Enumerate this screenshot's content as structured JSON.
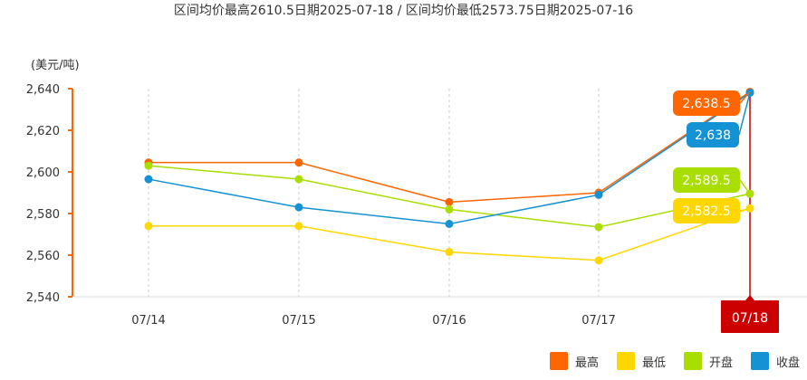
{
  "header": {
    "title": "区间均价最高2610.5日期2025-07-18 / 区间均价最低2573.75日期2025-07-16"
  },
  "chart_data": {
    "type": "line",
    "unit_label": "(美元/吨)",
    "categories": [
      "07/14",
      "07/15",
      "07/16",
      "07/17",
      "07/18"
    ],
    "ylim": [
      2540,
      2640
    ],
    "yticks": [
      2540,
      2560,
      2580,
      2600,
      2620,
      2640
    ],
    "ytick_labels": [
      "2,540",
      "2,560",
      "2,580",
      "2,600",
      "2,620",
      "2,640"
    ],
    "grid": "vertical-dashed",
    "legend_position": "bottom-right",
    "highlight_category": "07/18",
    "series": [
      {
        "name": "最高",
        "color": "#ff6600",
        "values": [
          2604.5,
          2604.5,
          2585.5,
          2590,
          2638.5
        ],
        "end_label": "2,638.5"
      },
      {
        "name": "最低",
        "color": "#ffd700",
        "values": [
          2574,
          2574,
          2561.5,
          2557.5,
          2582.5
        ],
        "end_label": "2,582.5"
      },
      {
        "name": "开盘",
        "color": "#aadd00",
        "values": [
          2603,
          2596.5,
          2582,
          2573.5,
          2589.5
        ],
        "end_label": "2,589.5"
      },
      {
        "name": "收盘",
        "color": "#1592d4",
        "values": [
          2596.5,
          2583,
          2575,
          2589,
          2638
        ],
        "end_label": "2,638"
      }
    ],
    "highlight_color": "#cc0000"
  }
}
